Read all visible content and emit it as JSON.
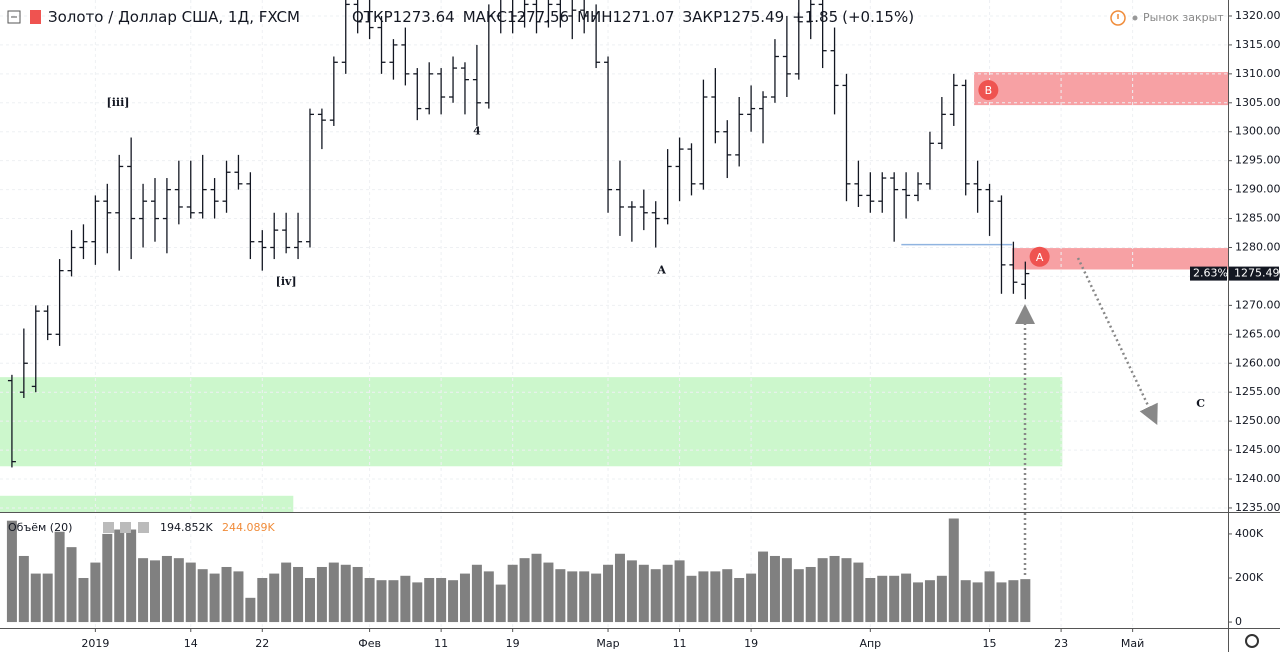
{
  "header": {
    "symbol": "Золото / Доллар США, 1Д, FXCM",
    "stats": [
      {
        "label": "ОТКР",
        "value": 1273.64
      },
      {
        "label": "МАКС",
        "value": 1277.56
      },
      {
        "label": "МИН",
        "value": 1271.07
      },
      {
        "label": "ЗАКР",
        "value": 1275.49
      }
    ],
    "change": "+1.85",
    "change_pct": "(+0.15%)",
    "market_status": "Рынок закрыт"
  },
  "chart_data": {
    "type": "ohlc",
    "xlim": [
      -1,
      102
    ],
    "ylim": [
      1234.3,
      1322.76
    ],
    "xticks": [
      {
        "value": 7,
        "label": "2019"
      },
      {
        "value": 15,
        "label": "14"
      },
      {
        "value": 21,
        "label": "22"
      },
      {
        "value": 30,
        "label": "Фев"
      },
      {
        "value": 36,
        "label": "11"
      },
      {
        "value": 42,
        "label": "19"
      },
      {
        "value": 50,
        "label": "Мар"
      },
      {
        "value": 56,
        "label": "11"
      },
      {
        "value": 62,
        "label": "19"
      },
      {
        "value": 72,
        "label": "Апр"
      },
      {
        "value": 82,
        "label": "15"
      },
      {
        "value": 88,
        "label": "23"
      },
      {
        "value": 94,
        "label": "Май"
      }
    ],
    "yticks": [
      {
        "value": 1235,
        "label": "1235.00"
      },
      {
        "value": 1240,
        "label": "1240.00"
      },
      {
        "value": 1245,
        "label": "1245.00"
      },
      {
        "value": 1250,
        "label": "1250.00"
      },
      {
        "value": 1255,
        "label": "1255.00"
      },
      {
        "value": 1260,
        "label": "1260.00"
      },
      {
        "value": 1265,
        "label": "1265.00"
      },
      {
        "value": 1270,
        "label": "1270.00"
      },
      {
        "value": 1275,
        "label": "1275.00"
      },
      {
        "value": 1280,
        "label": "1280.00"
      },
      {
        "value": 1285,
        "label": "1285.00"
      },
      {
        "value": 1290,
        "label": "1290.00"
      },
      {
        "value": 1295,
        "label": "1295.00"
      },
      {
        "value": 1300,
        "label": "1300.00"
      },
      {
        "value": 1305,
        "label": "1305.00"
      },
      {
        "value": 1310,
        "label": "1310.00"
      },
      {
        "value": 1315,
        "label": "1315.00"
      },
      {
        "value": 1320,
        "label": "1320.00"
      }
    ],
    "grid": true,
    "color": "#131722",
    "open": [
      1257,
      1255,
      1256,
      1269,
      1265,
      1276,
      1280,
      1281,
      1288,
      1286,
      1294,
      1285,
      1288,
      1285,
      1290,
      1287,
      1286,
      1290,
      1288,
      1293,
      1291,
      1281,
      1280,
      1283,
      1280,
      1281,
      1303,
      1302,
      1312,
      1322,
      1319,
      1318,
      1312,
      1315,
      1310,
      1304,
      1310,
      1306,
      1311,
      1309,
      1305,
      1320,
      1323,
      1320,
      1322,
      1319,
      1322,
      1320,
      1321,
      1320,
      1312,
      1290,
      1287,
      1287,
      1286,
      1285,
      1294,
      1297,
      1291,
      1306,
      1300,
      1296,
      1303,
      1304,
      1306,
      1313,
      1310,
      1319,
      1322,
      1314,
      1308,
      1291,
      1289,
      1288,
      1292,
      1290,
      1289,
      1291,
      1298,
      1303,
      1308,
      1291,
      1290,
      1288,
      1277,
      1273.64
    ],
    "high": [
      1258,
      1266,
      1270,
      1270,
      1278,
      1283,
      1284,
      1289,
      1291,
      1296,
      1299,
      1291,
      1292,
      1292,
      1295,
      1295,
      1296,
      1292,
      1295,
      1296,
      1293,
      1283,
      1286,
      1286,
      1286,
      1304,
      1304,
      1313,
      1324,
      1325,
      1323,
      1320,
      1316,
      1318,
      1311,
      1312,
      1311,
      1313,
      1312,
      1315,
      1322,
      1326,
      1324,
      1325,
      1323,
      1325,
      1324,
      1324,
      1326,
      1322,
      1313,
      1295,
      1288,
      1290,
      1288,
      1297,
      1299,
      1298,
      1309,
      1311,
      1302,
      1306,
      1308,
      1307,
      1316,
      1320,
      1324,
      1326,
      1324,
      1318,
      1310,
      1295,
      1293,
      1293,
      1293,
      1293,
      1293,
      1300,
      1306,
      1310,
      1309,
      1295,
      1291,
      1289,
      1281,
      1277.56
    ],
    "low": [
      1242,
      1254,
      1255,
      1264,
      1263,
      1275,
      1278,
      1277,
      1279,
      1276,
      1278,
      1280,
      1281,
      1279,
      1284,
      1285,
      1285,
      1285,
      1286,
      1290,
      1278,
      1276,
      1278,
      1279,
      1278,
      1280,
      1297,
      1301,
      1310,
      1317,
      1316,
      1310,
      1309,
      1308,
      1302,
      1303,
      1303,
      1305,
      1303,
      1301,
      1304,
      1317,
      1317,
      1318,
      1317,
      1318,
      1318,
      1316,
      1317,
      1311,
      1286,
      1282,
      1281,
      1283,
      1280,
      1284,
      1288,
      1289,
      1290,
      1298,
      1292,
      1294,
      1300,
      1298,
      1305,
      1306,
      1309,
      1316,
      1311,
      1303,
      1288,
      1287,
      1286,
      1286,
      1281,
      1285,
      1288,
      1290,
      1297,
      1301,
      1289,
      1286,
      1282,
      1272,
      1272,
      1271.07
    ],
    "close": [
      1243,
      1260,
      1269,
      1265,
      1276,
      1280,
      1281,
      1288,
      1286,
      1294,
      1285,
      1288,
      1285,
      1290,
      1287,
      1286,
      1290,
      1288,
      1293,
      1291,
      1281,
      1280,
      1283,
      1280,
      1281,
      1303,
      1302,
      1312,
      1322,
      1319,
      1318,
      1312,
      1315,
      1310,
      1304,
      1310,
      1306,
      1311,
      1309,
      1305,
      1320,
      1323,
      1320,
      1322,
      1319,
      1322,
      1320,
      1321,
      1320,
      1312,
      1290,
      1287,
      1287,
      1286,
      1285,
      1294,
      1297,
      1291,
      1306,
      1300,
      1296,
      1303,
      1304,
      1306,
      1313,
      1310,
      1319,
      1322,
      1314,
      1308,
      1291,
      1289,
      1288,
      1292,
      1290,
      1289,
      1291,
      1298,
      1303,
      1308,
      1291,
      1290,
      1288,
      1277,
      1274,
      1275.49
    ],
    "last_price": 1275.49,
    "last_price_note": "2.63%",
    "zones": [
      {
        "y": [
          1304.6,
          1310.3
        ],
        "x": [
          80.7,
          102
        ],
        "color": "#f7a1a4"
      },
      {
        "y": [
          1276.2,
          1279.9
        ],
        "x": [
          83.9,
          102
        ],
        "color": "#f7a1a4"
      },
      {
        "y": [
          1242.2,
          1257.6
        ],
        "x": [
          -1,
          88.1
        ],
        "color": "#ccf7cc"
      },
      {
        "y": [
          1234.3,
          1237.1
        ],
        "x": [
          -1,
          23.6
        ],
        "color": "#ccf7cc"
      }
    ],
    "level_line": {
      "y": 1280.5,
      "x": [
        74.6,
        83.9
      ],
      "color": "#90b4e0"
    },
    "annotations": [
      {
        "text": "[iii]",
        "x": 8.9,
        "y": 1305
      },
      {
        "text": "[iv]",
        "x": 23,
        "y": 1274
      },
      {
        "text": "4",
        "x": 39,
        "y": 1300
      },
      {
        "text": "A",
        "x": 54.5,
        "y": 1276
      },
      {
        "text": "C",
        "x": 99.7,
        "y": 1253
      },
      {
        "text": "B",
        "x": 81.9,
        "y": 1307.2,
        "badge": "#ef5350"
      },
      {
        "text": "A",
        "x": 86.2,
        "y": 1278.4,
        "badge": "#ef5350"
      }
    ],
    "volume": {
      "name": "Объём (20)",
      "value_label": "194.852K",
      "ma_label": "244.089K",
      "color": "#808080",
      "ylim": [
        -27,
        495
      ],
      "yticks": [
        {
          "value": 0,
          "label": "0"
        },
        {
          "value": 200,
          "label": "200K"
        },
        {
          "value": 400,
          "label": "400K"
        }
      ],
      "values": [
        460,
        300,
        220,
        220,
        410,
        340,
        200,
        270,
        400,
        420,
        420,
        290,
        280,
        300,
        290,
        270,
        240,
        220,
        250,
        230,
        110,
        200,
        220,
        270,
        250,
        200,
        250,
        270,
        260,
        250,
        200,
        190,
        190,
        210,
        180,
        200,
        200,
        190,
        220,
        260,
        230,
        170,
        260,
        290,
        310,
        270,
        240,
        230,
        230,
        220,
        260,
        310,
        280,
        260,
        240,
        260,
        280,
        210,
        230,
        230,
        240,
        200,
        220,
        320,
        300,
        290,
        240,
        250,
        290,
        300,
        290,
        270,
        200,
        210,
        210,
        220,
        180,
        190,
        210,
        470,
        190,
        180,
        230,
        180,
        190,
        194.852
      ]
    }
  }
}
